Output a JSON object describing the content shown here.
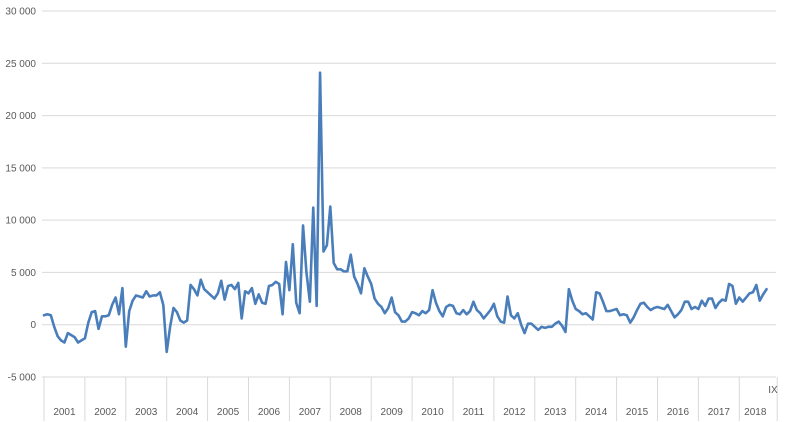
{
  "chart_data": {
    "type": "line",
    "ylim": [
      -5000,
      30000
    ],
    "y_ticks": [
      -5000,
      0,
      5000,
      10000,
      15000,
      20000,
      25000,
      30000
    ],
    "y_tick_labels": [
      "-5 000",
      "0",
      "5 000",
      "10 000",
      "15 000",
      "20 000",
      "25 000",
      "30 000"
    ],
    "grid": true,
    "x_year_labels": [
      "2001",
      "2002",
      "2003",
      "2004",
      "2005",
      "2006",
      "2007",
      "2008",
      "2009",
      "2010",
      "2011",
      "2012",
      "2013",
      "2014",
      "2015",
      "2016",
      "2017",
      "2018"
    ],
    "x_end_label": "IX",
    "series": [
      {
        "color": "#4a7ebb",
        "values": [
          900,
          1000,
          900,
          -200,
          -1100,
          -1500,
          -1700,
          -800,
          -1000,
          -1200,
          -1700,
          -1500,
          -1300,
          200,
          1200,
          1300,
          -400,
          800,
          800,
          900,
          1900,
          2600,
          1000,
          3500,
          -2100,
          1300,
          2300,
          2800,
          2700,
          2600,
          3200,
          2700,
          2800,
          2800,
          3100,
          1900,
          -2600,
          -200,
          1600,
          1200,
          400,
          200,
          400,
          3800,
          3400,
          2800,
          4300,
          3400,
          3100,
          2800,
          2500,
          3000,
          4200,
          2400,
          3700,
          3800,
          3400,
          4000,
          600,
          3200,
          3000,
          3500,
          2000,
          2900,
          2100,
          2000,
          3700,
          3800,
          4100,
          3900,
          1000,
          6000,
          3300,
          7700,
          2100,
          1100,
          9500,
          5000,
          2200,
          11200,
          1800,
          24100,
          7000,
          7600,
          11300,
          5900,
          5300,
          5300,
          5100,
          5100,
          6700,
          4600,
          3900,
          3000,
          5400,
          4600,
          3900,
          2500,
          2000,
          1700,
          1100,
          1600,
          2600,
          1200,
          900,
          300,
          300,
          600,
          1200,
          1100,
          900,
          1300,
          1100,
          1400,
          3300,
          2100,
          1300,
          800,
          1700,
          1900,
          1800,
          1100,
          1000,
          1400,
          1000,
          1300,
          2200,
          1400,
          1100,
          600,
          1000,
          1400,
          2000,
          800,
          300,
          200,
          2700,
          900,
          600,
          1100,
          0,
          -800,
          100,
          100,
          -200,
          -500,
          -200,
          -300,
          -200,
          -200,
          100,
          300,
          -100,
          -700,
          3400,
          2300,
          1500,
          1300,
          1000,
          1100,
          800,
          500,
          3100,
          3000,
          2200,
          1300,
          1300,
          1400,
          1500,
          900,
          1000,
          900,
          200,
          700,
          1400,
          2000,
          2100,
          1700,
          1400,
          1600,
          1700,
          1600,
          1500,
          1900,
          1300,
          700,
          1000,
          1400,
          2200,
          2200,
          1500,
          1700,
          1500,
          2300,
          1800,
          2500,
          2500,
          1600,
          2100,
          2400,
          2300,
          3900,
          3700,
          2000,
          2600,
          2200,
          2600,
          3000,
          3100,
          3800,
          2300,
          2900,
          3400
        ]
      }
    ]
  }
}
